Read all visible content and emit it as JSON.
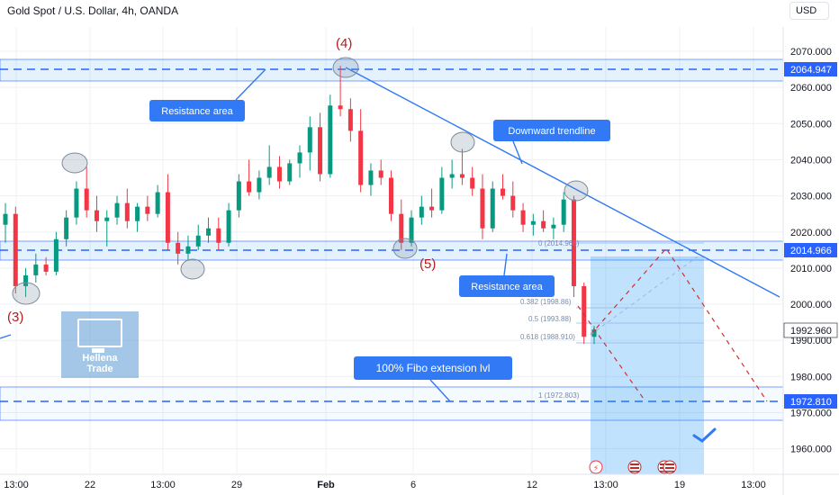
{
  "header": {
    "title": "Gold Spot / U.S. Dollar, 4h, OANDA",
    "currency": "USD"
  },
  "logo": {
    "line1": "Hellena",
    "line2": "Trade"
  },
  "chart_data": {
    "type": "candlestick",
    "y_ticks": [
      "2070.000",
      "2060.000",
      "2050.000",
      "2040.000",
      "2030.000",
      "2020.000",
      "2010.000",
      "2000.000",
      "1990.000",
      "1980.000",
      "1970.000",
      "1960.000"
    ],
    "x_ticks": [
      "13:00",
      "22",
      "13:00",
      "29",
      "Feb",
      "6",
      "12",
      "13:00",
      "19",
      "13:00"
    ],
    "price_labels": {
      "resistance_top": "2064.947",
      "resistance_mid": "2014.966",
      "current": "1992.960",
      "target": "1972.810"
    },
    "annotations": {
      "wave3": "(3)",
      "wave4": "(4)",
      "wave5": "(5)",
      "resistance_area_1": "Resistance area",
      "resistance_area_2": "Resistance area",
      "downward_trendline": "Downward trendline",
      "fibo_ext": "100% Fibo extension lvl"
    },
    "fib_levels": [
      "0 (2014.966)",
      "0.382 (1998.86)",
      "0.5 (1993.88)",
      "0.618 (1988.910)",
      "1 (1972.803)"
    ],
    "candles": [
      {
        "o": 2022,
        "h": 2028,
        "l": 2017,
        "c": 2025
      },
      {
        "o": 2025,
        "h": 2027,
        "l": 2003,
        "c": 2005
      },
      {
        "o": 2005,
        "h": 2010,
        "l": 2002,
        "c": 2008
      },
      {
        "o": 2008,
        "h": 2014,
        "l": 2006,
        "c": 2011
      },
      {
        "o": 2011,
        "h": 2013,
        "l": 2008,
        "c": 2009
      },
      {
        "o": 2009,
        "h": 2020,
        "l": 2008,
        "c": 2018
      },
      {
        "o": 2018,
        "h": 2026,
        "l": 2016,
        "c": 2024
      },
      {
        "o": 2024,
        "h": 2034,
        "l": 2022,
        "c": 2032
      },
      {
        "o": 2032,
        "h": 2038,
        "l": 2024,
        "c": 2026
      },
      {
        "o": 2026,
        "h": 2030,
        "l": 2020,
        "c": 2023
      },
      {
        "o": 2023,
        "h": 2026,
        "l": 2016,
        "c": 2024
      },
      {
        "o": 2024,
        "h": 2030,
        "l": 2022,
        "c": 2028
      },
      {
        "o": 2028,
        "h": 2032,
        "l": 2021,
        "c": 2023
      },
      {
        "o": 2023,
        "h": 2028,
        "l": 2020,
        "c": 2027
      },
      {
        "o": 2027,
        "h": 2030,
        "l": 2023,
        "c": 2025
      },
      {
        "o": 2025,
        "h": 2033,
        "l": 2024,
        "c": 2031
      },
      {
        "o": 2031,
        "h": 2036,
        "l": 2015,
        "c": 2017
      },
      {
        "o": 2017,
        "h": 2020,
        "l": 2011,
        "c": 2014
      },
      {
        "o": 2014,
        "h": 2019,
        "l": 2012,
        "c": 2016
      },
      {
        "o": 2016,
        "h": 2022,
        "l": 2015,
        "c": 2019
      },
      {
        "o": 2019,
        "h": 2024,
        "l": 2017,
        "c": 2021
      },
      {
        "o": 2021,
        "h": 2024,
        "l": 2015,
        "c": 2017
      },
      {
        "o": 2017,
        "h": 2028,
        "l": 2016,
        "c": 2026
      },
      {
        "o": 2026,
        "h": 2036,
        "l": 2024,
        "c": 2034
      },
      {
        "o": 2034,
        "h": 2040,
        "l": 2030,
        "c": 2031
      },
      {
        "o": 2031,
        "h": 2037,
        "l": 2029,
        "c": 2035
      },
      {
        "o": 2035,
        "h": 2044,
        "l": 2033,
        "c": 2038
      },
      {
        "o": 2038,
        "h": 2041,
        "l": 2032,
        "c": 2034
      },
      {
        "o": 2034,
        "h": 2040,
        "l": 2033,
        "c": 2039
      },
      {
        "o": 2039,
        "h": 2044,
        "l": 2035,
        "c": 2042
      },
      {
        "o": 2042,
        "h": 2052,
        "l": 2037,
        "c": 2049
      },
      {
        "o": 2049,
        "h": 2053,
        "l": 2034,
        "c": 2036
      },
      {
        "o": 2036,
        "h": 2058,
        "l": 2035,
        "c": 2055
      },
      {
        "o": 2055,
        "h": 2066,
        "l": 2052,
        "c": 2054
      },
      {
        "o": 2054,
        "h": 2057,
        "l": 2045,
        "c": 2048
      },
      {
        "o": 2048,
        "h": 2054,
        "l": 2031,
        "c": 2033
      },
      {
        "o": 2033,
        "h": 2039,
        "l": 2030,
        "c": 2037
      },
      {
        "o": 2037,
        "h": 2040,
        "l": 2033,
        "c": 2035
      },
      {
        "o": 2035,
        "h": 2037,
        "l": 2023,
        "c": 2025
      },
      {
        "o": 2025,
        "h": 2029,
        "l": 2015,
        "c": 2017
      },
      {
        "o": 2017,
        "h": 2026,
        "l": 2016,
        "c": 2024
      },
      {
        "o": 2024,
        "h": 2030,
        "l": 2022,
        "c": 2027
      },
      {
        "o": 2027,
        "h": 2032,
        "l": 2024,
        "c": 2026
      },
      {
        "o": 2026,
        "h": 2038,
        "l": 2025,
        "c": 2035
      },
      {
        "o": 2035,
        "h": 2040,
        "l": 2032,
        "c": 2036
      },
      {
        "o": 2036,
        "h": 2043,
        "l": 2033,
        "c": 2035
      },
      {
        "o": 2035,
        "h": 2038,
        "l": 2030,
        "c": 2032
      },
      {
        "o": 2032,
        "h": 2036,
        "l": 2018,
        "c": 2021
      },
      {
        "o": 2021,
        "h": 2034,
        "l": 2020,
        "c": 2032
      },
      {
        "o": 2032,
        "h": 2036,
        "l": 2029,
        "c": 2030
      },
      {
        "o": 2030,
        "h": 2034,
        "l": 2024,
        "c": 2026
      },
      {
        "o": 2026,
        "h": 2028,
        "l": 2020,
        "c": 2022
      },
      {
        "o": 2022,
        "h": 2025,
        "l": 2019,
        "c": 2023
      },
      {
        "o": 2023,
        "h": 2026,
        "l": 2020,
        "c": 2021
      },
      {
        "o": 2021,
        "h": 2024,
        "l": 2018,
        "c": 2022
      },
      {
        "o": 2022,
        "h": 2031,
        "l": 2020,
        "c": 2029
      },
      {
        "o": 2029,
        "h": 2030,
        "l": 2002,
        "c": 2005
      },
      {
        "o": 2005,
        "h": 2006,
        "l": 1989,
        "c": 1991
      },
      {
        "o": 1991,
        "h": 1994,
        "l": 1989,
        "c": 1993
      }
    ],
    "colors": {
      "up": "#089981",
      "down": "#f23645",
      "accent": "#3179f5",
      "wave": "#c62828",
      "zone": "rgba(33,150,243,0.12)"
    }
  }
}
